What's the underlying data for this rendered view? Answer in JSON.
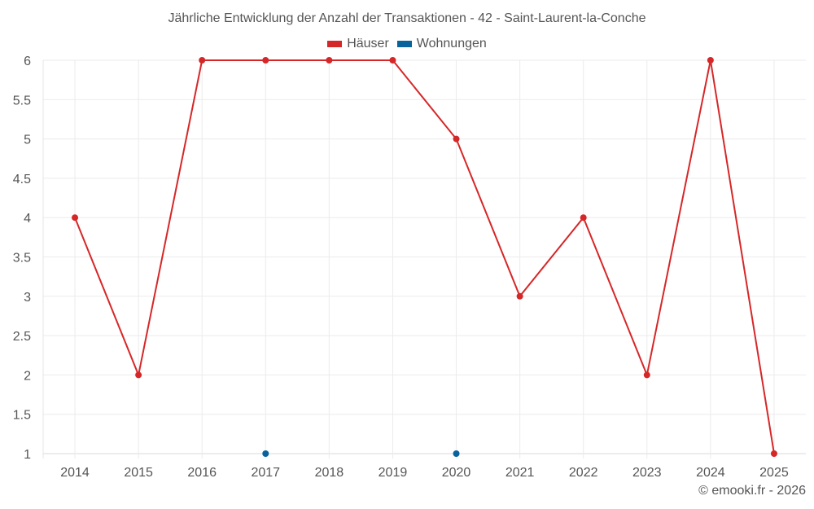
{
  "chart_data": {
    "type": "line",
    "title": "Jährliche Entwicklung der Anzahl der Transaktionen - 42 - Saint-Laurent-la-Conche",
    "categories": [
      "2014",
      "2015",
      "2016",
      "2017",
      "2018",
      "2019",
      "2020",
      "2021",
      "2022",
      "2023",
      "2024",
      "2025"
    ],
    "series": [
      {
        "name": "Häuser",
        "color": "#d62728",
        "values": [
          4,
          2,
          6,
          6,
          6,
          6,
          5,
          3,
          4,
          2,
          6,
          1
        ],
        "line": true
      },
      {
        "name": "Wohnungen",
        "color": "#08639c",
        "values": [
          null,
          null,
          null,
          1,
          null,
          null,
          1,
          null,
          null,
          null,
          null,
          null
        ],
        "line": false
      }
    ],
    "xlabel": "",
    "ylabel": "",
    "ylim": [
      1,
      6
    ],
    "yticks": [
      "1",
      "1.5",
      "2",
      "2.5",
      "3",
      "3.5",
      "4",
      "4.5",
      "5",
      "5.5",
      "6"
    ],
    "grid": true,
    "legend_position": "top"
  },
  "legend": {
    "items": [
      {
        "label": "Häuser",
        "color": "#d62728"
      },
      {
        "label": "Wohnungen",
        "color": "#08639c"
      }
    ]
  },
  "credit": "© emooki.fr - 2026"
}
